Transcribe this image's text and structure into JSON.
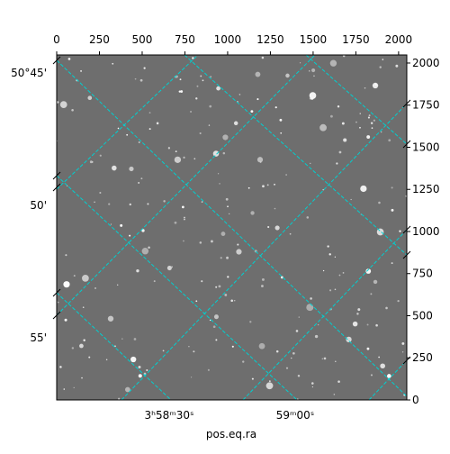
{
  "chart_data": {
    "type": "image",
    "xlabel": "pos.eq.ra",
    "xlim": [
      0,
      2048
    ],
    "xticks": [
      0,
      250,
      500,
      750,
      1000,
      1250,
      1500,
      1750,
      2000
    ],
    "y2lim": [
      0,
      2048
    ],
    "y2ticks": [
      0,
      250,
      500,
      750,
      1000,
      1250,
      1500,
      1750,
      2000
    ],
    "dec_labels": [
      "50°45'",
      "50'",
      "55'"
    ],
    "ra_labels": [
      "3ʰ58ᵐ30ˢ",
      "59ᵐ00ˢ"
    ],
    "grid": true,
    "grid_color": "#00d0d0"
  }
}
